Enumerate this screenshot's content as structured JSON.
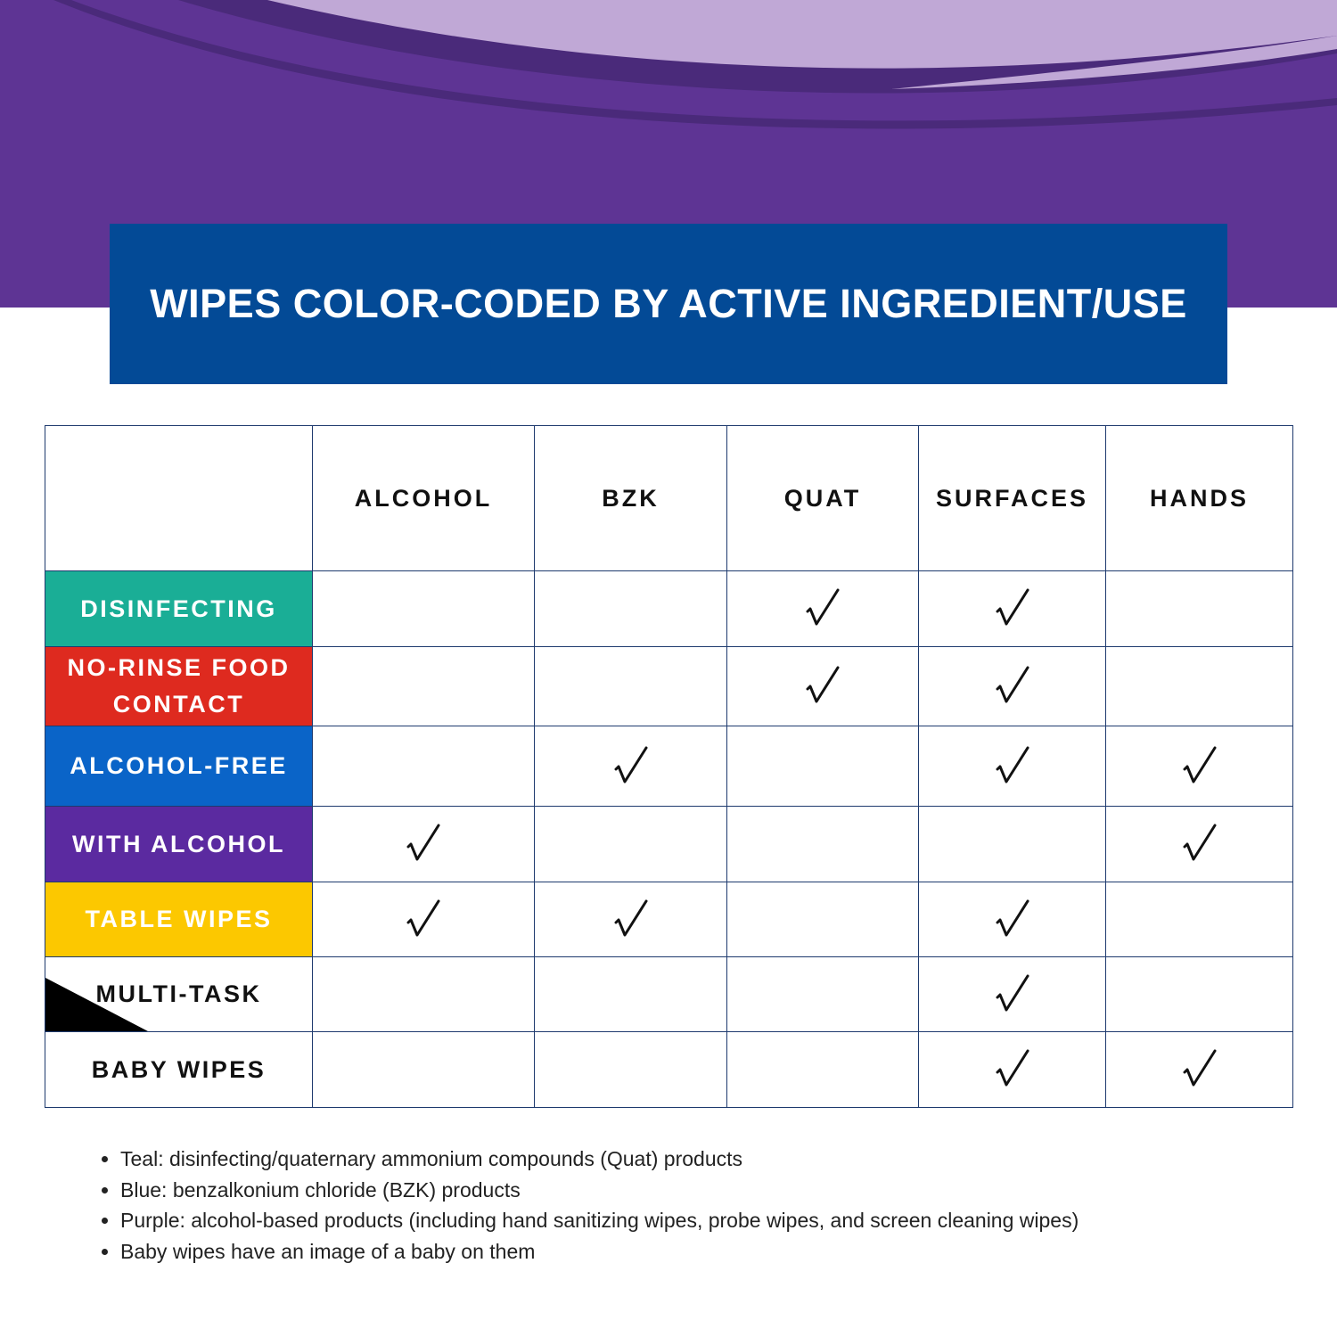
{
  "header": {
    "title": "WIPES COLOR-CODED BY ACTIVE INGREDIENT/USE"
  },
  "table": {
    "columns": [
      "ALCOHOL",
      "BZK",
      "QUAT",
      "SURFACES",
      "HANDS"
    ],
    "rows": [
      {
        "label": "DISINFECTING",
        "color": "#1aae96",
        "text_color": "#ffffff",
        "checks": [
          false,
          false,
          true,
          true,
          false
        ]
      },
      {
        "label": "NO-RINSE FOOD CONTACT",
        "color": "#de2a1f",
        "text_color": "#ffffff",
        "checks": [
          false,
          false,
          true,
          true,
          false
        ]
      },
      {
        "label": "ALCOHOL-FREE",
        "color": "#0a64c8",
        "text_color": "#ffffff",
        "checks": [
          false,
          true,
          false,
          true,
          true
        ]
      },
      {
        "label": "WITH ALCOHOL",
        "color": "#5b2aa0",
        "text_color": "#ffffff",
        "checks": [
          true,
          false,
          false,
          false,
          true
        ]
      },
      {
        "label": "TABLE WIPES",
        "color": "#fcc800",
        "text_color": "#ffffff",
        "checks": [
          true,
          true,
          false,
          true,
          false
        ]
      },
      {
        "label": "MULTI-TASK",
        "color": "#ffffff",
        "text_color": "#111111",
        "checks": [
          false,
          false,
          false,
          true,
          false
        ]
      },
      {
        "label": "BABY WIPES",
        "color": "#ffffff",
        "text_color": "#111111",
        "checks": [
          false,
          false,
          false,
          true,
          true
        ]
      }
    ]
  },
  "notes": [
    "Teal: disinfecting/quaternary ammonium compounds (Quat) products",
    "Blue: benzalkonium chloride (BZK) products",
    "Purple: alcohol-based products (including hand sanitizing wipes, probe wipes, and screen cleaning wipes)",
    "Baby wipes have an image of a baby on them"
  ]
}
